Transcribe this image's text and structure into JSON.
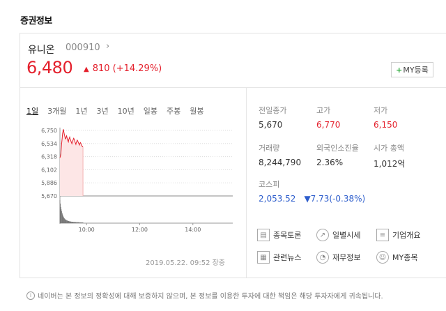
{
  "section_title": "증권정보",
  "stock": {
    "name": "유니온",
    "code": "000910",
    "price": "6,480",
    "change_arrow": "▲",
    "change": "810 (+14.29%)",
    "my_button": "MY등록"
  },
  "periods": [
    "1일",
    "3개월",
    "1년",
    "3년",
    "10년",
    "일봉",
    "주봉",
    "월봉"
  ],
  "chart_data": {
    "type": "area",
    "y_ticks": [
      "6,750",
      "6,534",
      "6,318",
      "6,102",
      "5,886",
      "5,670"
    ],
    "x_ticks": [
      "10:00",
      "12:00",
      "14:00"
    ],
    "ylim": [
      5670,
      6750
    ],
    "x": [
      "09:00",
      "09:01",
      "09:02",
      "09:03",
      "09:04",
      "09:05",
      "09:06",
      "09:07",
      "09:08",
      "09:09",
      "09:10",
      "09:11",
      "09:12",
      "09:13",
      "09:14",
      "09:15",
      "09:16",
      "09:17",
      "09:18",
      "09:19",
      "09:20",
      "09:21",
      "09:22",
      "09:23",
      "09:24",
      "09:25",
      "09:26",
      "09:27",
      "09:28",
      "09:29",
      "09:30",
      "09:31",
      "09:32",
      "09:33",
      "09:34",
      "09:35",
      "09:36",
      "09:37",
      "09:38",
      "09:39",
      "09:40",
      "09:41",
      "09:42",
      "09:43",
      "09:44",
      "09:45",
      "09:46",
      "09:47",
      "09:48",
      "09:49",
      "09:50",
      "09:51",
      "09:52"
    ],
    "values": [
      6300,
      6320,
      6360,
      6450,
      6540,
      6620,
      6700,
      6740,
      6770,
      6720,
      6680,
      6650,
      6620,
      6610,
      6640,
      6660,
      6630,
      6600,
      6580,
      6560,
      6600,
      6620,
      6640,
      6610,
      6590,
      6570,
      6550,
      6530,
      6560,
      6580,
      6600,
      6620,
      6610,
      6590,
      6560,
      6540,
      6520,
      6550,
      6570,
      6590,
      6580,
      6560,
      6540,
      6530,
      6510,
      6530,
      6550,
      6540,
      6520,
      6500,
      6490,
      6480,
      6480
    ],
    "volume": [
      100,
      85,
      70,
      60,
      52,
      45,
      38,
      32,
      28,
      24,
      21,
      19,
      17,
      15,
      14,
      13,
      12,
      11,
      10,
      9,
      9,
      8,
      8,
      7,
      7,
      7,
      6,
      6,
      6,
      6,
      5,
      5,
      5,
      5,
      5,
      5,
      4,
      4,
      4,
      4,
      4,
      4,
      4,
      4,
      3,
      3,
      3,
      3,
      3,
      3,
      3,
      3,
      3
    ],
    "base_value": 5670,
    "colors": {
      "line": "#e4202c",
      "fill": "#fde6e6",
      "volume": "#777777"
    }
  },
  "info": {
    "prev_close": {
      "label": "전일종가",
      "value": "5,670"
    },
    "high": {
      "label": "고가",
      "value": "6,770"
    },
    "low": {
      "label": "저가",
      "value": "6,150"
    },
    "volume": {
      "label": "거래량",
      "value": "8,244,790"
    },
    "foreign": {
      "label": "외국인소진율",
      "value": "2.36%"
    },
    "market_cap": {
      "label": "시가 총액",
      "value": "1,012억"
    },
    "kospi": {
      "label": "코스피",
      "value": "2,053.52",
      "change": "▼7.73(-0.38%)"
    }
  },
  "quick_links": {
    "forum": "종목토론",
    "daily": "일별시세",
    "company": "기업개요",
    "news": "관련뉴스",
    "finance": "재무정보",
    "my": "MY종목"
  },
  "timestamp": "2019.05.22. 09:52 장중",
  "disclaimer": "네이버는 본 정보의 정확성에 대해 보증하지 않으며, 본 정보를 이용한 투자에 대한 책임은 해당 투자자에게 귀속됩니다.",
  "colors": {
    "up": "#e4202c",
    "down": "#2d5dcc",
    "accent_green": "#2dab3b"
  }
}
